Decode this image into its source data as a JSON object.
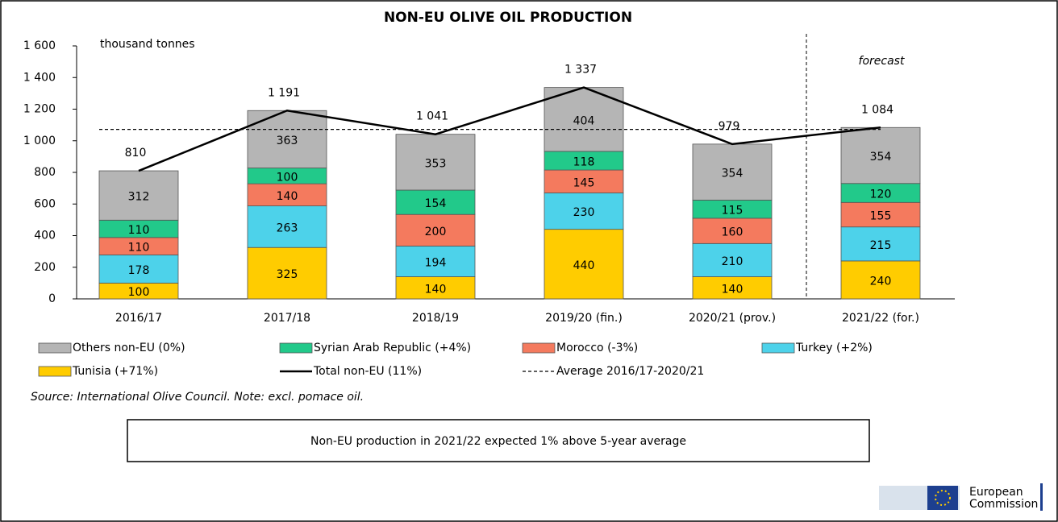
{
  "chart_data": {
    "type": "bar",
    "stacked": true,
    "title": "NON-EU OLIVE OIL PRODUCTION",
    "y_label": "thousand tonnes",
    "annotation": "forecast",
    "categories": [
      "2016/17",
      "2017/18",
      "2018/19",
      "2019/20 (fin.)",
      "2020/21 (prov.)",
      "2021/22 (for.)"
    ],
    "ylim": [
      0,
      1600
    ],
    "yticks": [
      0,
      200,
      400,
      600,
      800,
      {
        "value": 1000,
        "label": "1 000"
      },
      {
        "value": 1200,
        "label": "1 200"
      },
      {
        "value": 1400,
        "label": "1 400"
      },
      {
        "value": 1600,
        "label": "1 600"
      }
    ],
    "series": [
      {
        "name": "Tunisia (+71%)",
        "type": "bar",
        "color": "#ffcc00",
        "values": [
          100,
          325,
          140,
          440,
          140,
          240
        ]
      },
      {
        "name": "Turkey (+2%)",
        "type": "bar",
        "color": "#4dd2ea",
        "values": [
          178,
          263,
          194,
          230,
          210,
          215
        ]
      },
      {
        "name": "Morocco (-3%)",
        "type": "bar",
        "color": "#f47a5e",
        "values": [
          110,
          140,
          200,
          145,
          160,
          155
        ]
      },
      {
        "name": "Syrian Arab Republic (+4%)",
        "type": "bar",
        "color": "#22c98a",
        "values": [
          110,
          100,
          154,
          118,
          115,
          120
        ]
      },
      {
        "name": "Others non-EU (0%)",
        "type": "bar",
        "color": "#b5b5b5",
        "values": [
          312,
          363,
          353,
          404,
          354,
          354
        ]
      },
      {
        "name": "Total non-EU (11%)",
        "type": "line",
        "color": "#000000",
        "values": [
          810,
          1191,
          1041,
          1337,
          979,
          1084
        ],
        "value_labels": [
          "810",
          "1 191",
          "1 041",
          "1 337",
          "979",
          "1 084"
        ]
      }
    ],
    "average": {
      "name": "Average 2016/17-2020/21",
      "value": 1072,
      "color": "#000000"
    }
  },
  "notes": {
    "source": "Source: International Olive Council. Note: excl. pomace oil.",
    "headline": "Non-EU production in 2021/22 expected 1% above 5-year average",
    "logo_line1": "European",
    "logo_line2": "Commission"
  }
}
